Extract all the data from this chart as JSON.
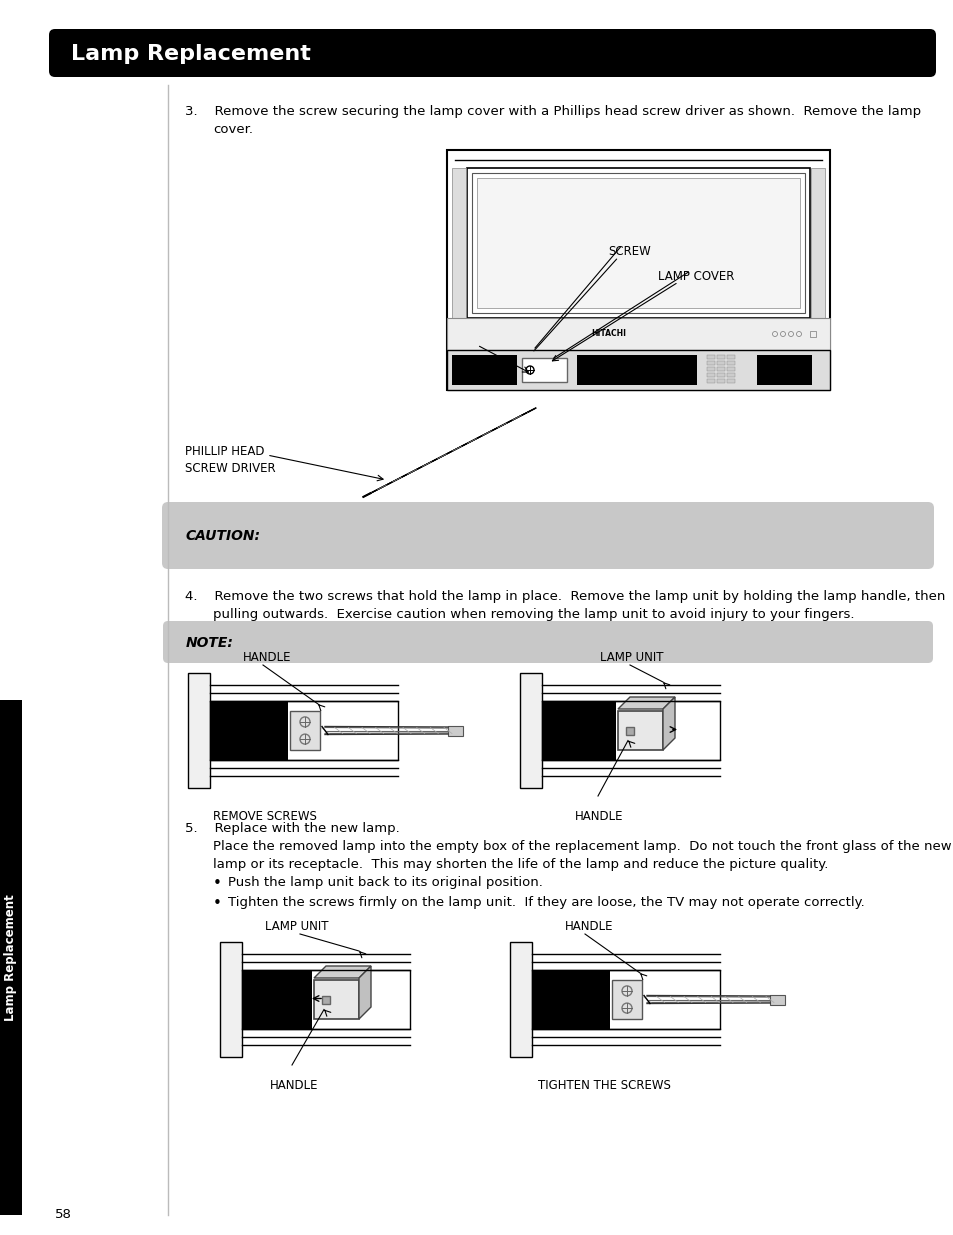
{
  "title": "Lamp Replacement",
  "title_bg": "#000000",
  "title_fg": "#ffffff",
  "page_bg": "#ffffff",
  "sidebar_text": "Lamp Replacement",
  "sidebar_bg": "#000000",
  "sidebar_fg": "#ffffff",
  "caution_bg": "#c8c8c8",
  "note_bg": "#c8c8c8",
  "page_number": "58",
  "bullet1": "Push the lamp unit back to its original position.",
  "bullet2": "Tighten the screws firmly on the lamp unit.  If they are loose, the TV may not operate correctly."
}
